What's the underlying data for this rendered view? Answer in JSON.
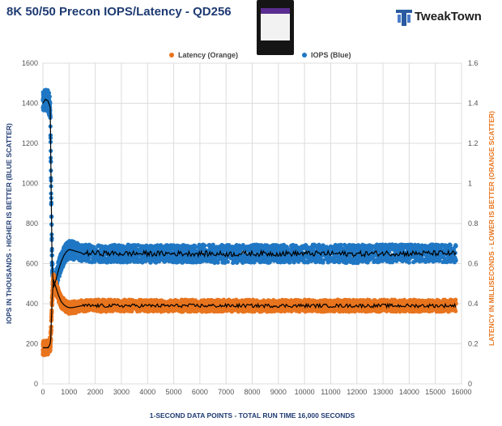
{
  "header": {
    "title": "8K 50/50 Precon IOPS/Latency - QD256",
    "logo_text": "TweakTown"
  },
  "colors": {
    "iops": "#1f77c4",
    "latency": "#e8741e",
    "trend": "#000000",
    "left_axis_label": "#1f3b73",
    "right_axis_label": "#e8741e",
    "bottom_axis_label": "#1f3b73"
  },
  "chart_data": {
    "type": "scatter",
    "title": "8K 50/50 Precon IOPS/Latency - QD256",
    "xlabel": "1-SECOND DATA POINTS - TOTAL RUN TIME 16,000 SECONDS",
    "ylabel_left": "IOPS IN THOUSANDS - HIGHER IS BETTER (BLUE SCATTER)",
    "ylabel_right": "LATENCY IN MILLISECONDS - LOWER IS BETTER (ORANGE SCATTER)",
    "xlim": [
      0,
      16000
    ],
    "ylim_left": [
      0,
      1600
    ],
    "ylim_right": [
      0,
      1.6
    ],
    "x_ticks": [
      "0",
      "1000",
      "2000",
      "3000",
      "4000",
      "5000",
      "6000",
      "7000",
      "8000",
      "9000",
      "10000",
      "11000",
      "12000",
      "13000",
      "14000",
      "15000",
      "16000"
    ],
    "y_left_ticks": [
      "0",
      "200",
      "400",
      "600",
      "800",
      "1000",
      "1200",
      "1400",
      "1600"
    ],
    "y_right_ticks": [
      "0",
      "0.2",
      "0.4",
      "0.6",
      "0.8",
      "1",
      "1.2",
      "1.4",
      "1.6"
    ],
    "grid": true,
    "legend_position": "top-center",
    "series": [
      {
        "name": "IOPS (Blue)",
        "axis": "left",
        "color": "#1f77c4",
        "trend_x": [
          0,
          100,
          200,
          280,
          300,
          350,
          400,
          500,
          600,
          700,
          800,
          900,
          1000,
          1100,
          1300,
          1500,
          2000,
          3000,
          4000,
          5000,
          6000,
          7000,
          8000,
          9000,
          10000,
          11000,
          12000,
          13000,
          14000,
          15000,
          15800
        ],
        "trend_y": [
          1400,
          1420,
          1410,
          1380,
          1130,
          600,
          480,
          520,
          570,
          610,
          640,
          660,
          670,
          668,
          660,
          652,
          652,
          650,
          650,
          650,
          650,
          648,
          650,
          650,
          650,
          650,
          648,
          652,
          650,
          652,
          650
        ],
        "band": 45
      },
      {
        "name": "Latency (Orange)",
        "axis": "right",
        "color": "#e8741e",
        "trend_x": [
          0,
          100,
          200,
          280,
          300,
          350,
          400,
          500,
          600,
          700,
          800,
          900,
          1000,
          1100,
          1300,
          1500,
          2000,
          3000,
          4000,
          5000,
          6000,
          7000,
          8000,
          9000,
          10000,
          11000,
          12000,
          13000,
          14000,
          15000,
          15800
        ],
        "trend_y": [
          0.18,
          0.18,
          0.18,
          0.2,
          0.23,
          0.42,
          0.52,
          0.48,
          0.44,
          0.41,
          0.395,
          0.385,
          0.38,
          0.38,
          0.385,
          0.39,
          0.39,
          0.39,
          0.39,
          0.39,
          0.39,
          0.39,
          0.39,
          0.39,
          0.39,
          0.39,
          0.39,
          0.39,
          0.39,
          0.39,
          0.39
        ],
        "band": 0.03
      }
    ]
  }
}
